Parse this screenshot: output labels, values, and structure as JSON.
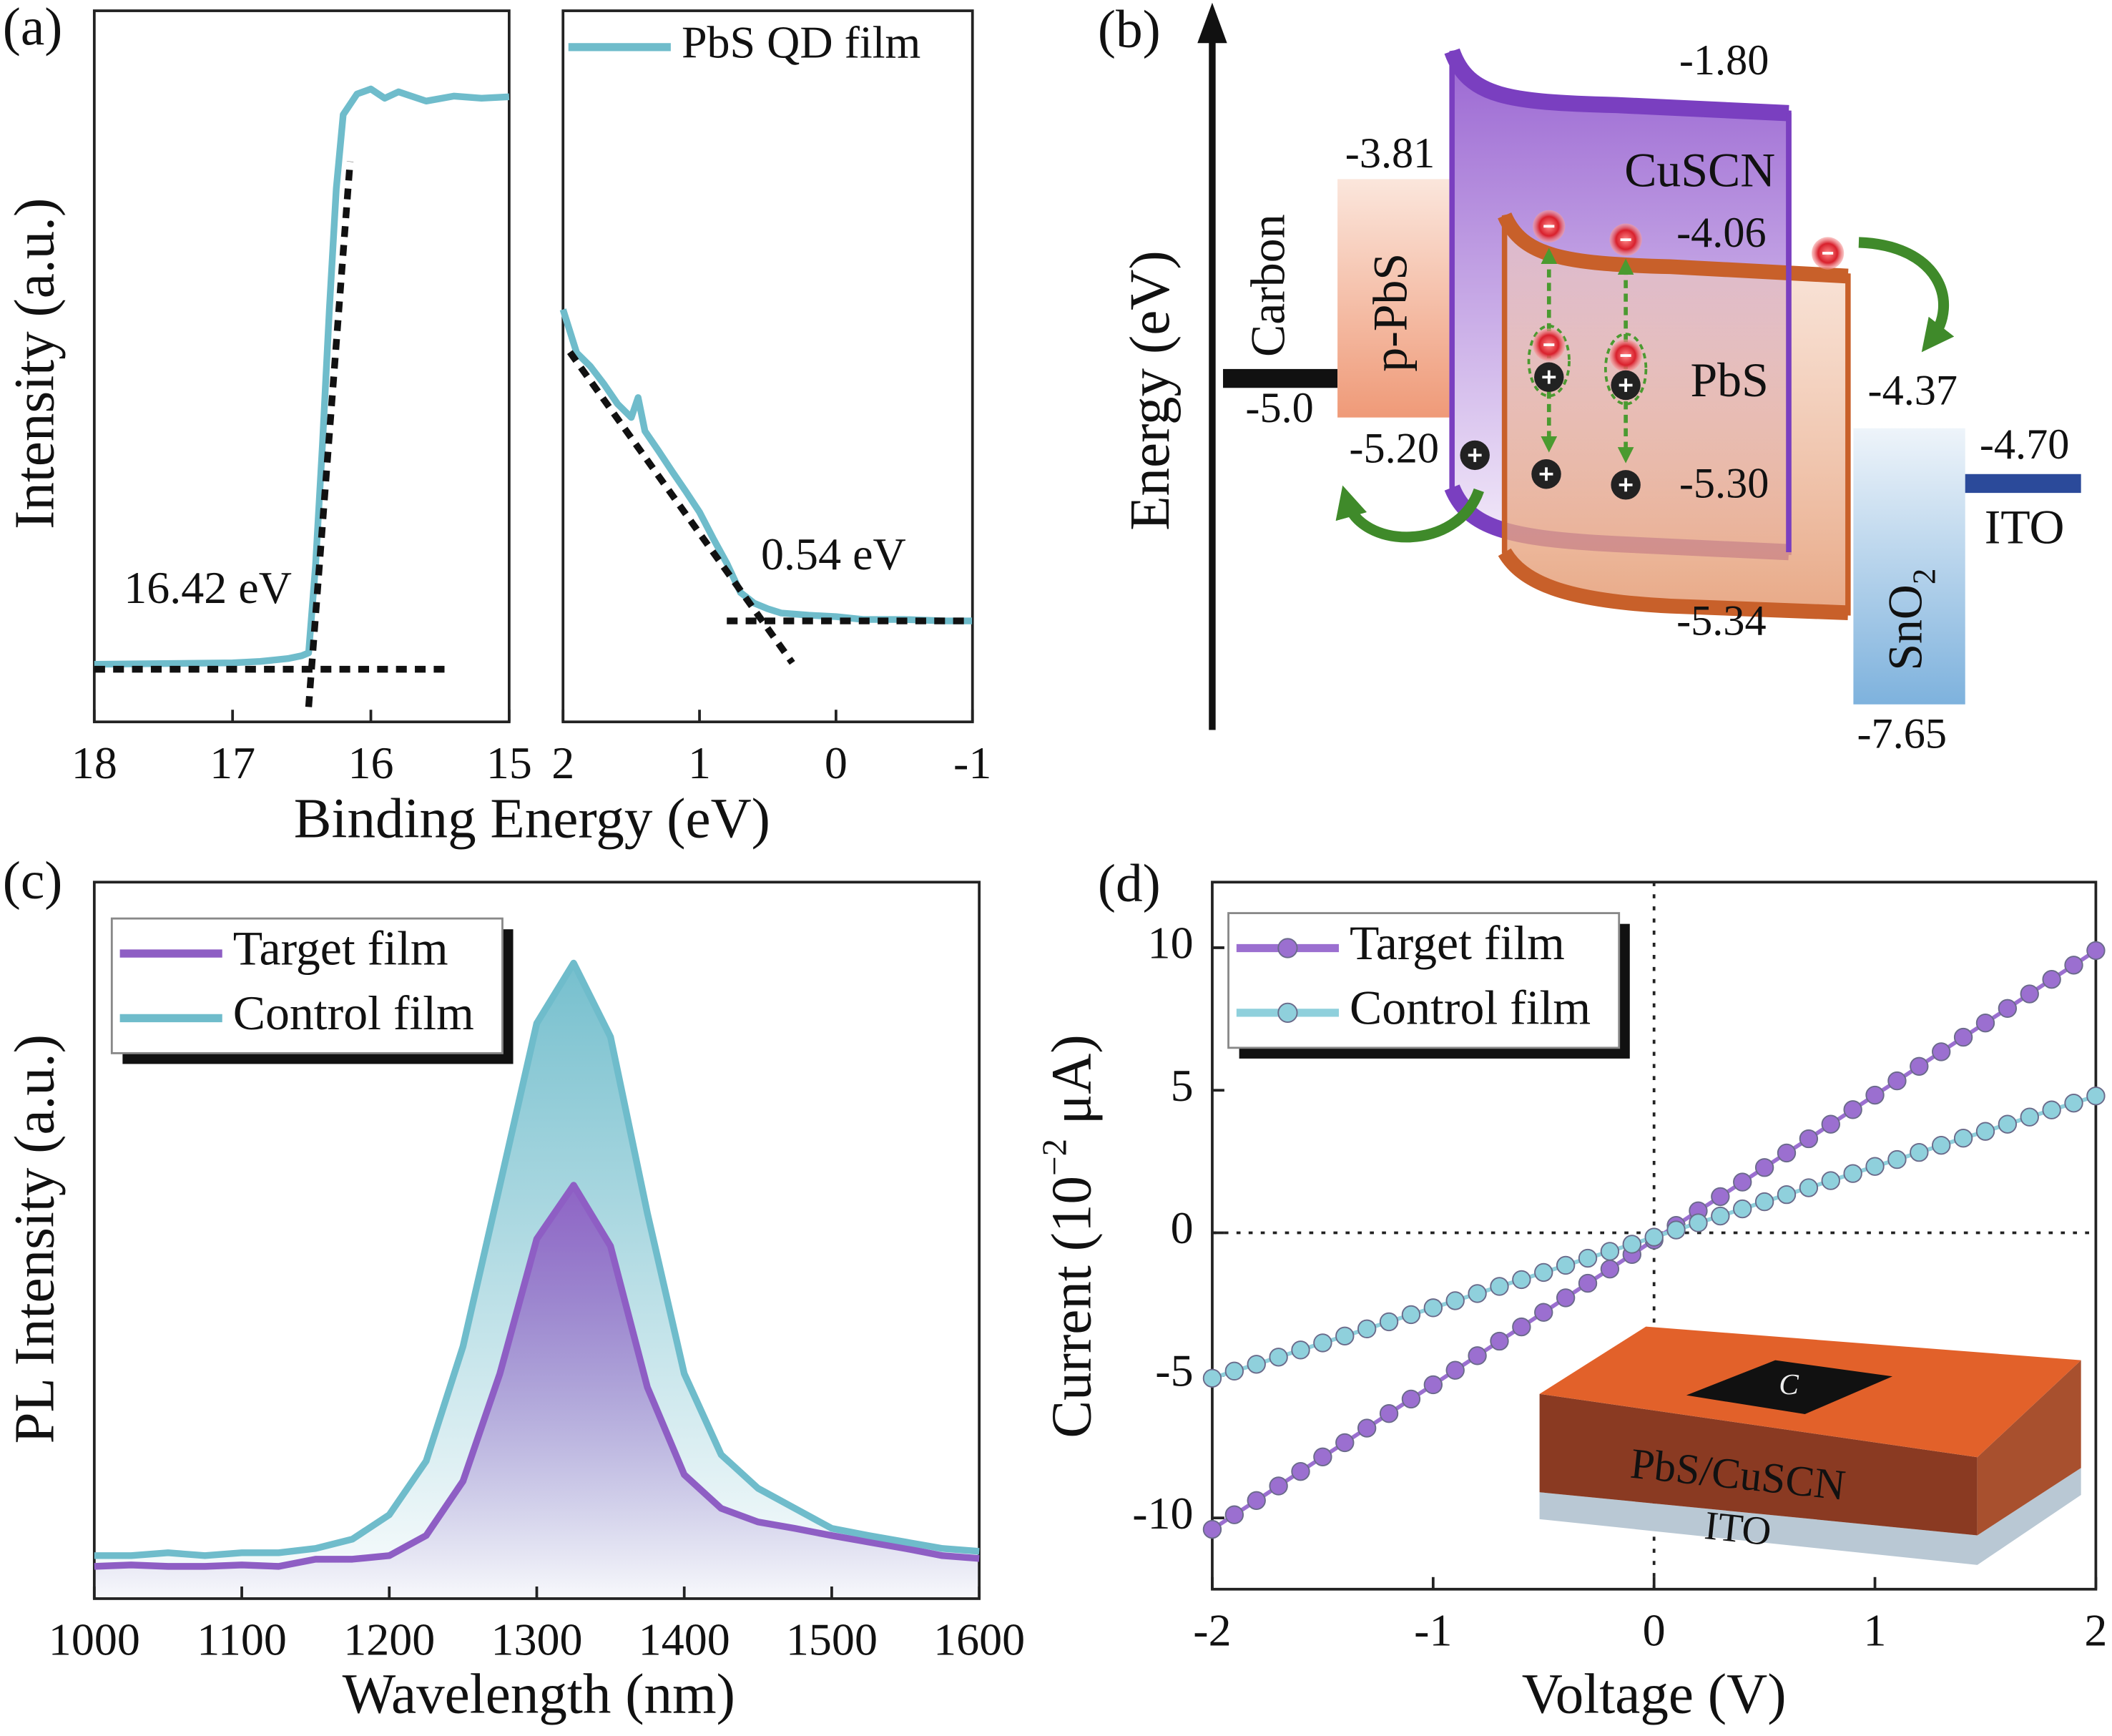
{
  "panels": [
    "(a)",
    "(b)",
    "(c)",
    "(d)"
  ],
  "diagram": {
    "axis_label": "Energy (eV)",
    "layers": {
      "carbon": "Carbon",
      "p_pbs": "p-PbS",
      "cuscn": "CuSCN",
      "pbs": "PbS",
      "sno2": [
        "SnO",
        "2"
      ],
      "ito": "ITO"
    },
    "levels": [
      "-1.80",
      "-3.81",
      "-4.06",
      "-4.37",
      "-4.70",
      "-5.0",
      "-5.20",
      "-5.30",
      "-5.34",
      "-7.65"
    ]
  },
  "chart_data": [
    {
      "type": "line",
      "xlabel": "Binding Energy (eV)",
      "ylabel": "Intensity (a.u.)",
      "xlim": [
        18,
        15
      ],
      "xticks": [
        18,
        17,
        16,
        15
      ],
      "ylim": [
        0,
        1
      ],
      "x": [
        18,
        17.5,
        17,
        16.8,
        16.6,
        16.5,
        16.45,
        16.4,
        16.35,
        16.3,
        16.25,
        16.2,
        16.1,
        16.0,
        15.9,
        15.8,
        15.6,
        15.4,
        15.2,
        15.0
      ],
      "series": [
        {
          "color": "#6fbccb",
          "values": [
            0.081,
            0.082,
            0.083,
            0.085,
            0.089,
            0.093,
            0.097,
            0.22,
            0.39,
            0.58,
            0.75,
            0.854,
            0.883,
            0.89,
            0.877,
            0.886,
            0.873,
            0.88,
            0.877,
            0.879
          ]
        }
      ],
      "fits": [
        {
          "x": [
            18,
            15.42
          ],
          "values": [
            0.074,
            0.074
          ]
        },
        {
          "x": [
            16.45,
            16.15
          ],
          "values": [
            0.021,
            0.788
          ]
        }
      ],
      "annotations": [
        "16.42 eV"
      ]
    },
    {
      "type": "line",
      "xlim": [
        2,
        -1
      ],
      "xticks": [
        2,
        1,
        0,
        -1
      ],
      "ylim": [
        0,
        1
      ],
      "legend": "upper right",
      "legend_frame": false,
      "x": [
        2,
        1.9,
        1.8,
        1.7,
        1.6,
        1.5,
        1.45,
        1.4,
        1.3,
        1.2,
        1.1,
        1.0,
        0.9,
        0.8,
        0.7,
        0.6,
        0.5,
        0.4,
        0.2,
        0,
        -0.2,
        -0.5,
        -0.8,
        -1
      ],
      "series": [
        {
          "name": "PbS QD film",
          "color": "#6fbccb",
          "values": [
            0.58,
            0.519,
            0.5,
            0.475,
            0.447,
            0.428,
            0.456,
            0.409,
            0.381,
            0.352,
            0.324,
            0.295,
            0.258,
            0.223,
            0.182,
            0.167,
            0.159,
            0.153,
            0.15,
            0.148,
            0.144,
            0.144,
            0.142,
            0.142
          ]
        }
      ],
      "fits": [
        {
          "x": [
            1.95,
            0.32
          ],
          "values": [
            0.52,
            0.083
          ]
        },
        {
          "x": [
            0.8,
            -1
          ],
          "values": [
            0.142,
            0.142
          ]
        }
      ],
      "annotations": [
        "0.54 eV"
      ]
    },
    {
      "type": "area",
      "xlabel": "Wavelength (nm)",
      "ylabel": "PL Intensity (a.u.)",
      "xlim": [
        1000,
        1600
      ],
      "xticks": [
        1000,
        1100,
        1200,
        1300,
        1400,
        1500,
        1600
      ],
      "ylim": [
        0,
        1
      ],
      "legend": "upper left",
      "legend_frame": true,
      "x": [
        1000,
        1025,
        1050,
        1075,
        1100,
        1125,
        1150,
        1175,
        1200,
        1225,
        1250,
        1275,
        1300,
        1325,
        1350,
        1375,
        1400,
        1425,
        1450,
        1475,
        1500,
        1525,
        1550,
        1575,
        1600
      ],
      "series": [
        {
          "name": "Target film",
          "color": "#8e5ec4",
          "values": [
            0.045,
            0.047,
            0.045,
            0.045,
            0.047,
            0.045,
            0.055,
            0.055,
            0.06,
            0.088,
            0.164,
            0.314,
            0.502,
            0.577,
            0.492,
            0.295,
            0.173,
            0.126,
            0.107,
            0.098,
            0.088,
            0.079,
            0.07,
            0.06,
            0.056
          ]
        },
        {
          "name": "Control film",
          "color": "#6fbccb",
          "values": [
            0.06,
            0.06,
            0.064,
            0.06,
            0.064,
            0.064,
            0.07,
            0.083,
            0.117,
            0.192,
            0.352,
            0.577,
            0.803,
            0.887,
            0.784,
            0.538,
            0.314,
            0.201,
            0.154,
            0.126,
            0.098,
            0.088,
            0.079,
            0.07,
            0.066
          ]
        }
      ]
    },
    {
      "type": "line",
      "markers": true,
      "zero_lines": true,
      "xlabel": "Voltage (V)",
      "ylabel": [
        "Current (10",
        "−2",
        " μA)"
      ],
      "xlim": [
        -2,
        2
      ],
      "xticks": [
        -2,
        -1,
        0,
        1,
        2
      ],
      "ylim": [
        -12.5,
        12.3
      ],
      "yticks": [
        -10,
        -5,
        0,
        5,
        10
      ],
      "legend": "upper left",
      "legend_frame": true,
      "x": [
        -2,
        -1.9,
        -1.8,
        -1.7,
        -1.6,
        -1.5,
        -1.4,
        -1.3,
        -1.2,
        -1.1,
        -1,
        -0.9,
        -0.8,
        -0.7,
        -0.6,
        -0.5,
        -0.4,
        -0.3,
        -0.2,
        -0.1,
        0,
        0.1,
        0.2,
        0.3,
        0.4,
        0.5,
        0.6,
        0.7,
        0.8,
        0.9,
        1,
        1.1,
        1.2,
        1.3,
        1.4,
        1.5,
        1.6,
        1.7,
        1.8,
        1.9,
        2
      ],
      "series": [
        {
          "name": "Target film",
          "color": "#9b6fd0",
          "values": [
            -10.4,
            -9.89,
            -9.39,
            -8.88,
            -8.37,
            -7.86,
            -7.36,
            -6.85,
            -6.34,
            -5.83,
            -5.33,
            -4.82,
            -4.31,
            -3.8,
            -3.3,
            -2.79,
            -2.28,
            -1.77,
            -1.27,
            -0.76,
            -0.25,
            0.26,
            0.77,
            1.27,
            1.78,
            2.29,
            2.8,
            3.3,
            3.81,
            4.32,
            4.83,
            5.33,
            5.84,
            6.35,
            6.86,
            7.36,
            7.87,
            8.38,
            8.89,
            9.39,
            9.9
          ]
        },
        {
          "name": "Control film",
          "color": "#8fd0dc",
          "values": [
            -5.1,
            -4.85,
            -4.61,
            -4.36,
            -4.11,
            -3.86,
            -3.62,
            -3.37,
            -3.12,
            -2.87,
            -2.63,
            -2.38,
            -2.13,
            -1.88,
            -1.64,
            -1.39,
            -1.14,
            -0.89,
            -0.65,
            -0.4,
            -0.15,
            0.1,
            0.35,
            0.59,
            0.84,
            1.09,
            1.34,
            1.58,
            1.83,
            2.08,
            2.33,
            2.57,
            2.82,
            3.07,
            3.32,
            3.56,
            3.81,
            4.06,
            4.31,
            4.55,
            4.8
          ]
        }
      ],
      "inset": {
        "electrode": "C",
        "layer": "PbS/CuSCN",
        "substrate": "ITO"
      }
    }
  ]
}
